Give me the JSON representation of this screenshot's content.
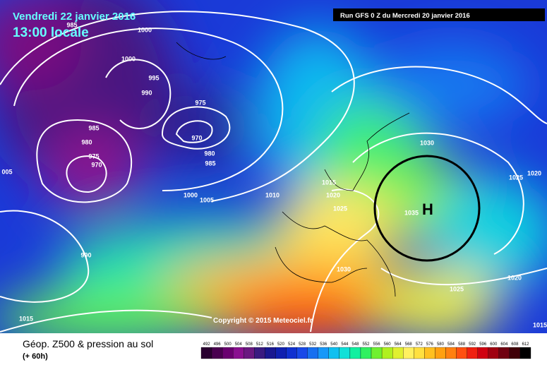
{
  "header": {
    "date": "Vendredi 22 janvier 2016",
    "time": "13:00 locale",
    "run": "Run GFS 0 Z du Mercredi 20 janvier 2016"
  },
  "copyright": "Copyright © 2015 Meteociel.fr",
  "high_marker": "H",
  "isobar_labels": [
    "985",
    "1000",
    "1000",
    "995",
    "990",
    "975",
    "985",
    "970",
    "980",
    "975",
    "980",
    "970",
    "985",
    "005",
    "1000",
    "1005",
    "1010",
    "1015",
    "1020",
    "1025",
    "1030",
    "1025",
    "1020",
    "1035",
    "990",
    "1030",
    "1025",
    "1020",
    "1015",
    "1015"
  ],
  "footer": {
    "title": "Géop. Z500 & pression au sol",
    "subtitle": "(+ 60h)"
  },
  "colorbar": {
    "labels": [
      492,
      496,
      500,
      504,
      508,
      512,
      516,
      520,
      524,
      528,
      532,
      536,
      540,
      544,
      548,
      552,
      556,
      560,
      564,
      568,
      572,
      576,
      580,
      584,
      588,
      592,
      596,
      600,
      604,
      608,
      612
    ],
    "colors": [
      "#2a0030",
      "#4a0050",
      "#6a0070",
      "#8a1090",
      "#6a1880",
      "#3a1a80",
      "#1a1890",
      "#1020b0",
      "#1030d0",
      "#1848e8",
      "#1870f0",
      "#1898f8",
      "#10c0f0",
      "#10e0d8",
      "#10f0a0",
      "#30f060",
      "#70f030",
      "#b0f020",
      "#e0f030",
      "#fff060",
      "#ffe040",
      "#ffc020",
      "#ffa010",
      "#ff8010",
      "#ff5010",
      "#f02010",
      "#d00010",
      "#a00010",
      "#700010",
      "#400008",
      "#000000"
    ]
  }
}
